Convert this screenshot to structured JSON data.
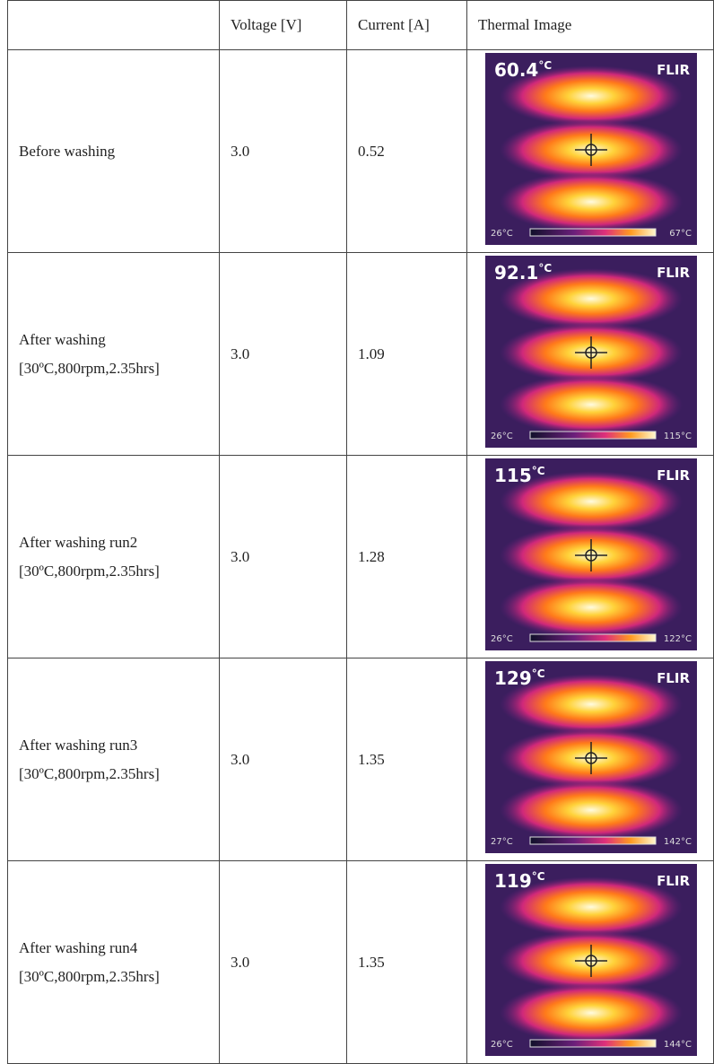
{
  "table": {
    "header": [
      "",
      "Voltage [V]",
      "Current [A]",
      "Thermal Image"
    ],
    "rows": [
      {
        "label": [
          "Before washing"
        ],
        "voltage": "3.0",
        "current": "0.52",
        "image": {
          "max_temp": "60.4",
          "unit": "°C",
          "brand": "FLIR",
          "scale_min": "26°C",
          "scale_max": "67°C"
        }
      },
      {
        "label": [
          "After washing",
          "[30ºC,800rpm,2.35hrs]"
        ],
        "voltage": "3.0",
        "current": "1.09",
        "image": {
          "max_temp": "92.1",
          "unit": "°C",
          "brand": "FLIR",
          "scale_min": "26°C",
          "scale_max": "115°C"
        }
      },
      {
        "label": [
          "After washing run2",
          "[30ºC,800rpm,2.35hrs]"
        ],
        "voltage": "3.0",
        "current": "1.28",
        "image": {
          "max_temp": "115",
          "unit": "°C",
          "brand": "FLIR",
          "scale_min": "26°C",
          "scale_max": "122°C"
        }
      },
      {
        "label": [
          "After washing run3",
          "[30ºC,800rpm,2.35hrs]"
        ],
        "voltage": "3.0",
        "current": "1.35",
        "image": {
          "max_temp": "129",
          "unit": "°C",
          "brand": "FLIR",
          "scale_min": "27°C",
          "scale_max": "142°C"
        }
      },
      {
        "label": [
          "After washing run4",
          "[30ºC,800rpm,2.35hrs]"
        ],
        "voltage": "3.0",
        "current": "1.35",
        "image": {
          "max_temp": "119",
          "unit": "°C",
          "brand": "FLIR",
          "scale_min": "26°C",
          "scale_max": "144°C"
        }
      }
    ]
  }
}
